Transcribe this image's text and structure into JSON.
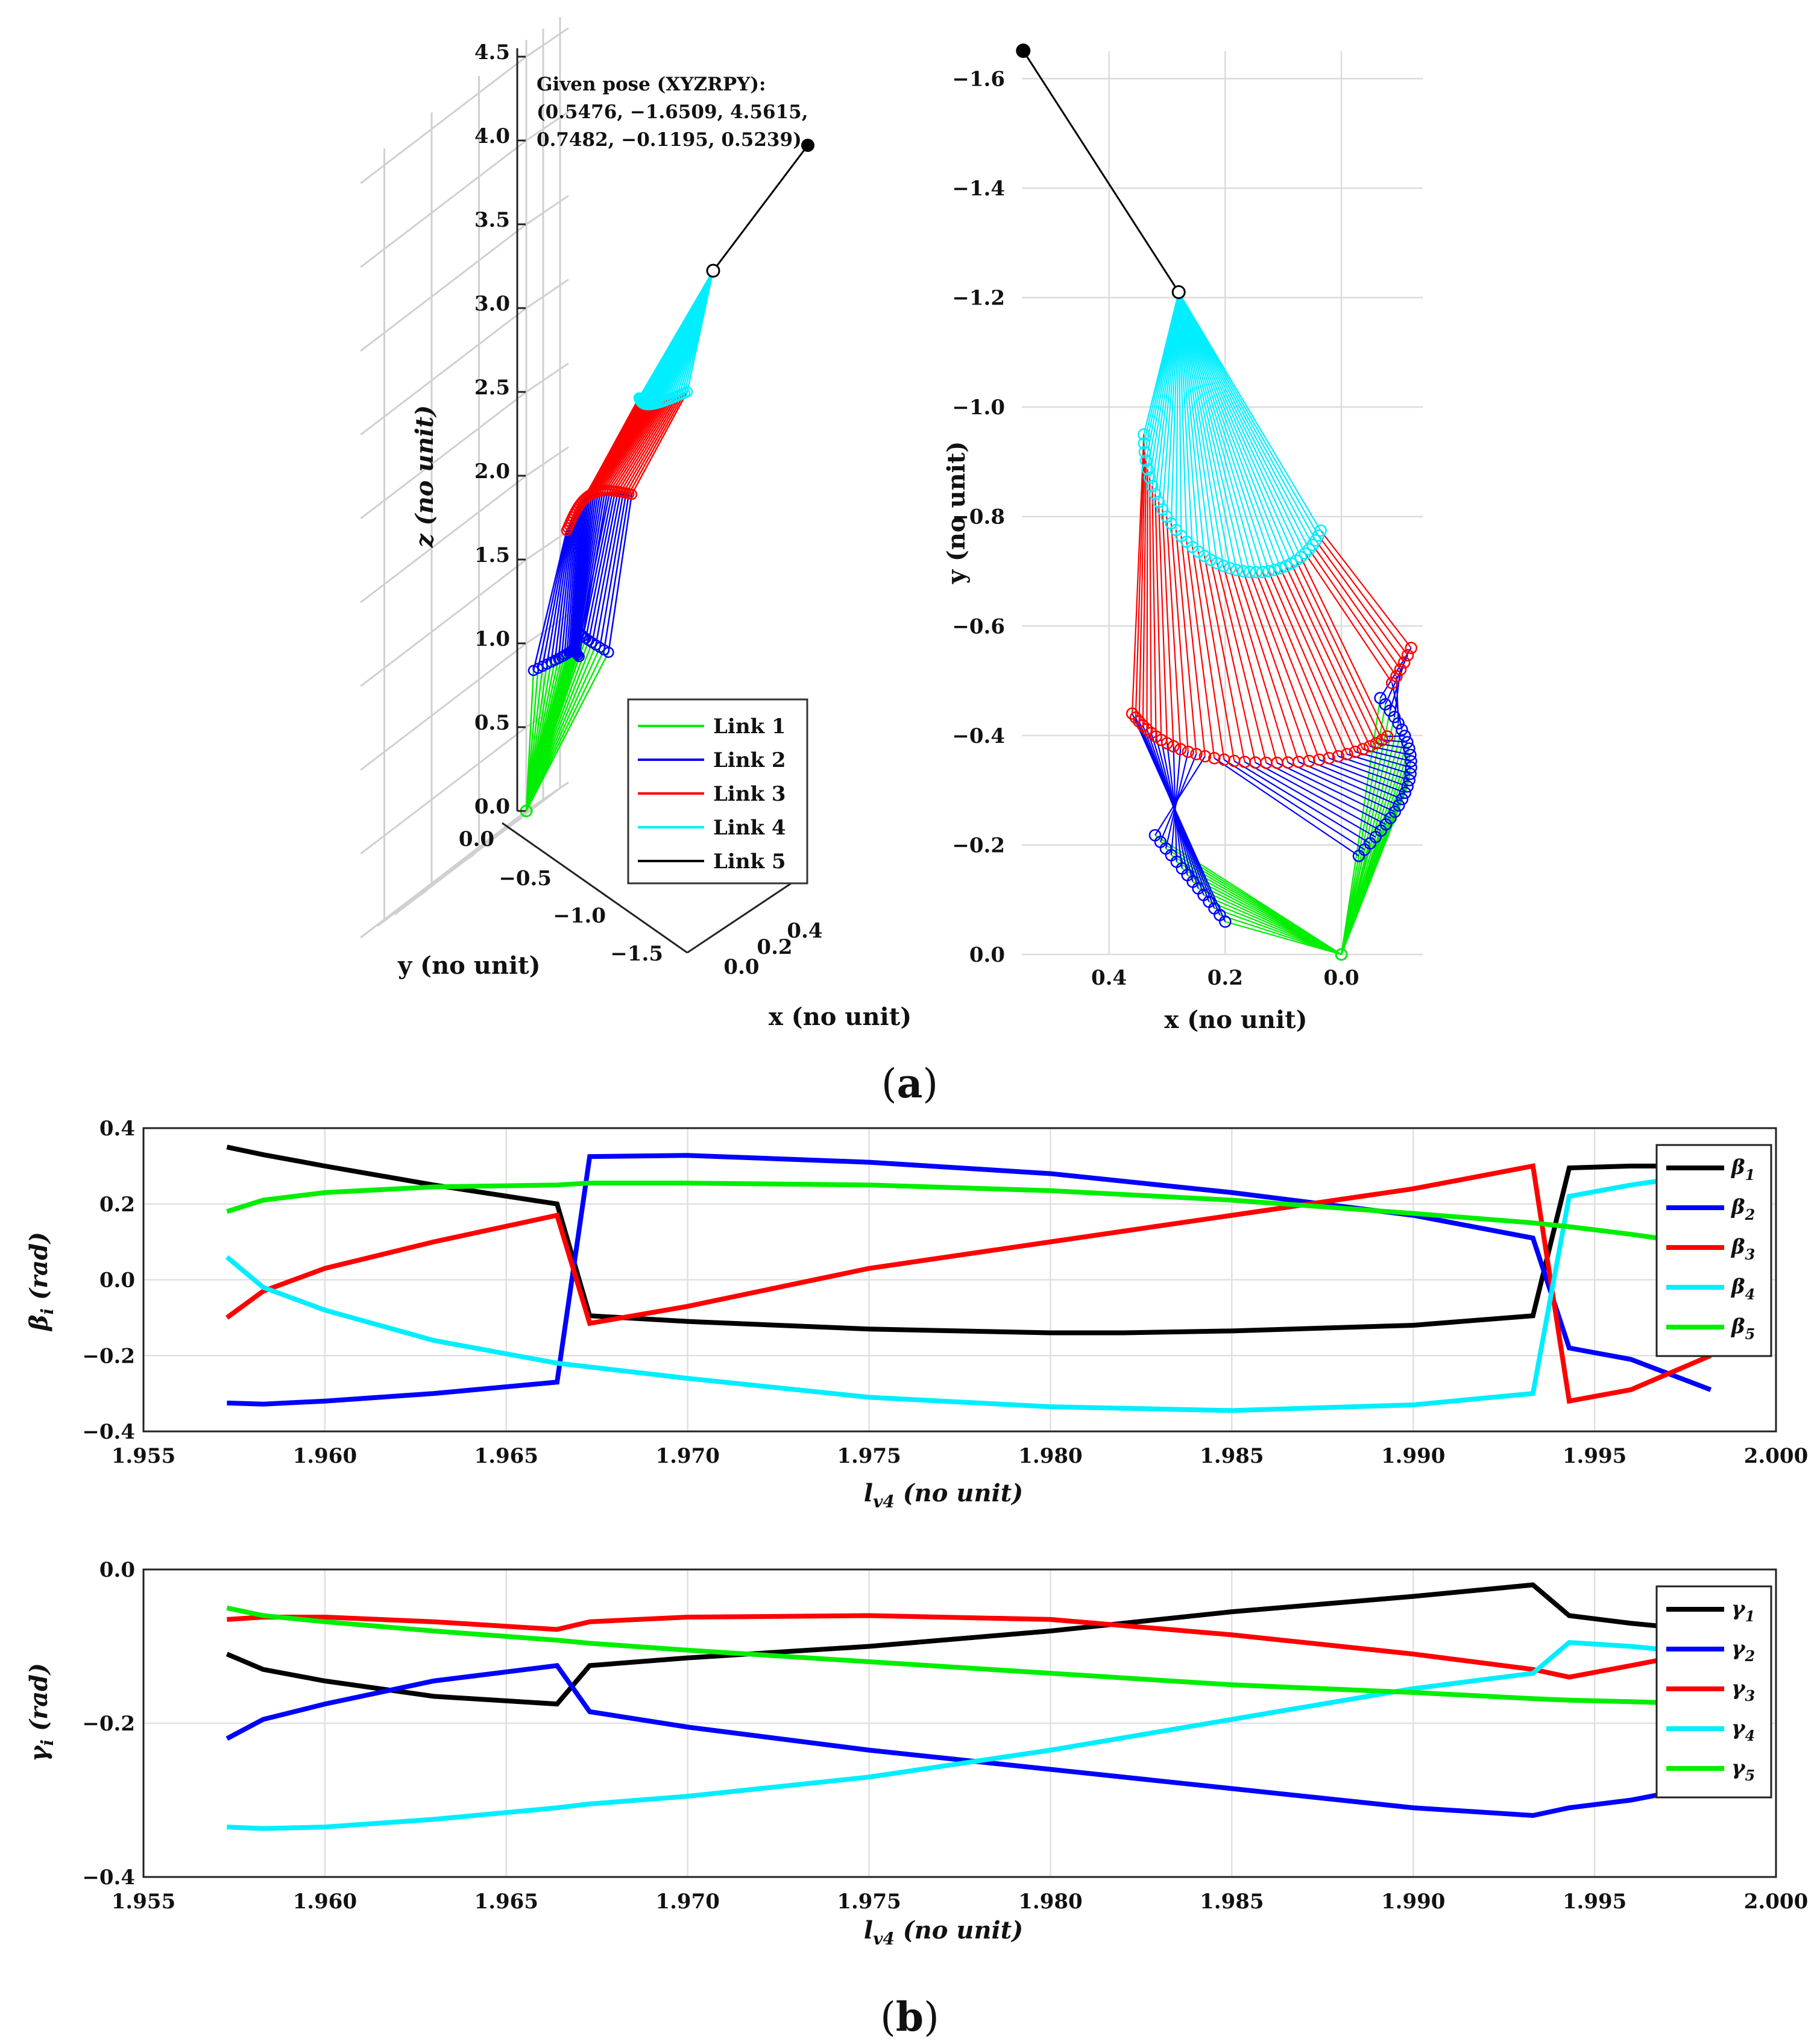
{
  "figure": {
    "panel_a_label": "(a)",
    "panel_a_letter": "a",
    "panel_b_label": "(b)",
    "panel_b_letter": "b"
  },
  "colors": {
    "link1": "#00ee00",
    "link2": "#0000ff",
    "link3": "#ff0000",
    "link4": "#00eeff",
    "link5": "#000000"
  },
  "chart_data": [
    {
      "type": "line3d",
      "title": "",
      "annotation": [
        "Given pose (XYZRPY):",
        "(0.5476, −1.6509, 4.5615,",
        "0.7482, −0.1195, 0.5239)"
      ],
      "xlabel": "x (no unit)",
      "ylabel": "y (no unit)",
      "zlabel": "z (no unit)",
      "xticks": [
        "0.0",
        "0.2",
        "0.4"
      ],
      "yticks": [
        "0.0",
        "−0.5",
        "−1.0",
        "−1.5"
      ],
      "zticks": [
        "0.0",
        "0.5",
        "1.0",
        "1.5",
        "2.0",
        "2.5",
        "3.0",
        "3.5",
        "4.0",
        "4.5"
      ],
      "zlim": [
        0,
        4.5
      ],
      "legend": [
        "Link 1",
        "Link 2",
        "Link 3",
        "Link 4",
        "Link 5"
      ],
      "legend_position": "bottom-right",
      "fixed_end_xyz": [
        0.5476,
        -1.6509,
        4.5615
      ]
    },
    {
      "type": "line",
      "title": "",
      "xlabel": "x (no unit)",
      "ylabel": "y (no unit)",
      "xlim": [
        0.55,
        -0.14
      ],
      "ylim": [
        0,
        -1.65
      ],
      "xticks": [
        "0.4",
        "0.2",
        "0.0"
      ],
      "yticks": [
        "0.0",
        "−0.2",
        "−0.4",
        "−0.6",
        "−0.8",
        "−1.0",
        "−1.2",
        "−1.4",
        "−1.6"
      ],
      "grid": true,
      "links": [
        {
          "name": "Link 1",
          "from": [
            0.0,
            0.0
          ],
          "to_range": "varying"
        },
        {
          "name": "Link 5",
          "from": [
            0.28,
            -1.21
          ],
          "to": [
            0.5476,
            -1.6509
          ]
        }
      ]
    },
    {
      "type": "line",
      "title": "",
      "xlabel": "l",
      "xlabel_sub": "v4",
      "xlabel_rest": " (no unit)",
      "ylabel": "β",
      "ylabel_sub": "i",
      "ylabel_rest": " (rad)",
      "xlim": [
        1.955,
        2.0
      ],
      "ylim": [
        -0.4,
        0.4
      ],
      "xticks": [
        "1.955",
        "1.960",
        "1.965",
        "1.970",
        "1.975",
        "1.980",
        "1.985",
        "1.990",
        "1.995",
        "2.000"
      ],
      "yticks": [
        "−0.4",
        "−0.2",
        "0.0",
        "0.2",
        "0.4"
      ],
      "grid": true,
      "legend_position": "top-right",
      "series": [
        {
          "name": "β",
          "sub": "1",
          "x": [
            1.9573,
            1.9583,
            1.96,
            1.963,
            1.9664,
            1.9673,
            1.97,
            1.975,
            1.98,
            1.982,
            1.985,
            1.99,
            1.9933,
            1.9943,
            1.996,
            1.9982
          ],
          "values": [
            0.35,
            0.33,
            0.3,
            0.25,
            0.2,
            -0.095,
            -0.11,
            -0.13,
            -0.14,
            -0.14,
            -0.135,
            -0.12,
            -0.095,
            0.295,
            0.3,
            0.3
          ]
        },
        {
          "name": "β",
          "sub": "2",
          "x": [
            1.9573,
            1.9583,
            1.96,
            1.963,
            1.9664,
            1.9673,
            1.97,
            1.975,
            1.98,
            1.985,
            1.99,
            1.9933,
            1.9943,
            1.996,
            1.9982
          ],
          "values": [
            -0.325,
            -0.328,
            -0.32,
            -0.3,
            -0.27,
            0.325,
            0.328,
            0.31,
            0.28,
            0.23,
            0.17,
            0.11,
            -0.18,
            -0.21,
            -0.29
          ]
        },
        {
          "name": "β",
          "sub": "3",
          "x": [
            1.9573,
            1.9583,
            1.96,
            1.963,
            1.9664,
            1.9673,
            1.97,
            1.975,
            1.98,
            1.985,
            1.99,
            1.9933,
            1.9943,
            1.996,
            1.9982
          ],
          "values": [
            -0.1,
            -0.03,
            0.03,
            0.1,
            0.17,
            -0.115,
            -0.07,
            0.03,
            0.1,
            0.17,
            0.24,
            0.3,
            -0.32,
            -0.29,
            -0.2
          ]
        },
        {
          "name": "β",
          "sub": "4",
          "x": [
            1.9573,
            1.9583,
            1.96,
            1.963,
            1.9664,
            1.9673,
            1.97,
            1.975,
            1.98,
            1.985,
            1.99,
            1.9933,
            1.9943,
            1.996,
            1.9982
          ],
          "values": [
            0.06,
            -0.02,
            -0.08,
            -0.16,
            -0.22,
            -0.23,
            -0.26,
            -0.31,
            -0.335,
            -0.345,
            -0.33,
            -0.3,
            0.22,
            0.25,
            0.28
          ]
        },
        {
          "name": "β",
          "sub": "5",
          "x": [
            1.9573,
            1.9583,
            1.96,
            1.963,
            1.9664,
            1.9673,
            1.97,
            1.975,
            1.98,
            1.985,
            1.99,
            1.9933,
            1.9943,
            1.996,
            1.9982
          ],
          "values": [
            0.18,
            0.21,
            0.23,
            0.245,
            0.25,
            0.255,
            0.255,
            0.25,
            0.235,
            0.21,
            0.175,
            0.15,
            0.14,
            0.12,
            0.09
          ]
        }
      ]
    },
    {
      "type": "line",
      "title": "",
      "xlabel": "l",
      "xlabel_sub": "v4",
      "xlabel_rest": " (no unit)",
      "ylabel": "γ",
      "ylabel_sub": "i",
      "ylabel_rest": " (rad)",
      "xlim": [
        1.955,
        2.0
      ],
      "ylim": [
        -0.4,
        0.0
      ],
      "xticks": [
        "1.955",
        "1.960",
        "1.965",
        "1.970",
        "1.975",
        "1.980",
        "1.985",
        "1.990",
        "1.995",
        "2.000"
      ],
      "yticks": [
        "−0.4",
        "−0.2",
        "0.0"
      ],
      "grid": true,
      "legend_position": "top-right",
      "series": [
        {
          "name": "γ",
          "sub": "1",
          "x": [
            1.9573,
            1.9583,
            1.96,
            1.963,
            1.9664,
            1.9673,
            1.97,
            1.975,
            1.98,
            1.985,
            1.99,
            1.9933,
            1.9943,
            1.996,
            1.9982
          ],
          "values": [
            -0.11,
            -0.13,
            -0.145,
            -0.165,
            -0.175,
            -0.125,
            -0.115,
            -0.1,
            -0.08,
            -0.055,
            -0.035,
            -0.02,
            -0.06,
            -0.07,
            -0.08
          ]
        },
        {
          "name": "γ",
          "sub": "2",
          "x": [
            1.9573,
            1.9583,
            1.96,
            1.963,
            1.9664,
            1.9673,
            1.97,
            1.975,
            1.98,
            1.985,
            1.99,
            1.9933,
            1.9943,
            1.996,
            1.9982
          ],
          "values": [
            -0.22,
            -0.195,
            -0.175,
            -0.145,
            -0.125,
            -0.185,
            -0.205,
            -0.235,
            -0.26,
            -0.285,
            -0.31,
            -0.32,
            -0.31,
            -0.3,
            -0.28
          ]
        },
        {
          "name": "γ",
          "sub": "3",
          "x": [
            1.9573,
            1.9583,
            1.96,
            1.963,
            1.9664,
            1.9673,
            1.97,
            1.975,
            1.98,
            1.985,
            1.99,
            1.9933,
            1.9943,
            1.996,
            1.9982
          ],
          "values": [
            -0.065,
            -0.062,
            -0.062,
            -0.068,
            -0.078,
            -0.068,
            -0.062,
            -0.06,
            -0.065,
            -0.085,
            -0.11,
            -0.13,
            -0.14,
            -0.125,
            -0.105
          ]
        },
        {
          "name": "γ",
          "sub": "4",
          "x": [
            1.9573,
            1.9583,
            1.96,
            1.963,
            1.9664,
            1.9673,
            1.97,
            1.975,
            1.98,
            1.985,
            1.99,
            1.9933,
            1.9943,
            1.996,
            1.9982
          ],
          "values": [
            -0.335,
            -0.337,
            -0.335,
            -0.325,
            -0.31,
            -0.305,
            -0.295,
            -0.27,
            -0.235,
            -0.195,
            -0.155,
            -0.135,
            -0.095,
            -0.1,
            -0.11
          ]
        },
        {
          "name": "γ",
          "sub": "5",
          "x": [
            1.9573,
            1.9583,
            1.96,
            1.963,
            1.9664,
            1.9673,
            1.97,
            1.975,
            1.98,
            1.985,
            1.99,
            1.9933,
            1.9943,
            1.996,
            1.9982
          ],
          "values": [
            -0.05,
            -0.06,
            -0.068,
            -0.08,
            -0.092,
            -0.096,
            -0.105,
            -0.12,
            -0.135,
            -0.15,
            -0.16,
            -0.168,
            -0.17,
            -0.172,
            -0.175
          ]
        }
      ]
    }
  ]
}
